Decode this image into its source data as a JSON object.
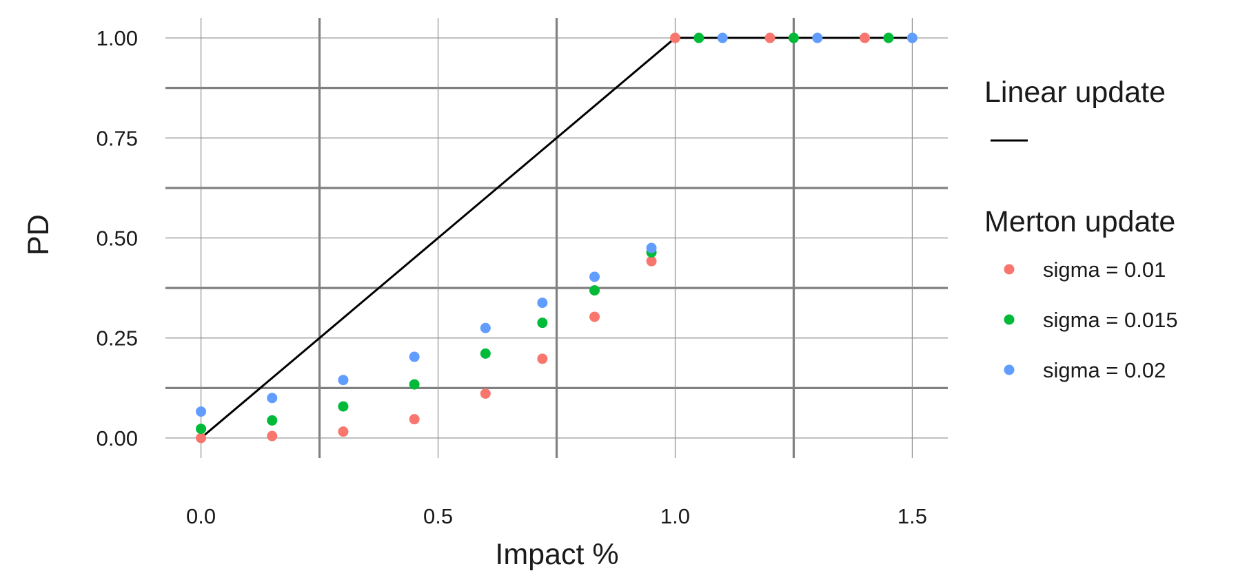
{
  "chart_data": {
    "type": "scatter",
    "title": "",
    "xlabel": "Impact %",
    "ylabel": "PD",
    "xlim": [
      -0.075,
      1.575
    ],
    "ylim": [
      -0.05,
      1.05
    ],
    "x_ticks": [
      0.0,
      0.5,
      1.0,
      1.5
    ],
    "x_tick_labels": [
      "0.0",
      "0.5",
      "1.0",
      "1.5"
    ],
    "y_ticks": [
      0.0,
      0.25,
      0.5,
      0.75,
      1.0
    ],
    "y_tick_labels": [
      "0.00",
      "0.25",
      "0.50",
      "0.75",
      "1.00"
    ],
    "grid": true,
    "legend_position": "right",
    "line_series": {
      "name": "Linear update",
      "legend_title": "Linear update",
      "color": "#000000",
      "points": [
        [
          0.0,
          0.0
        ],
        [
          1.0,
          1.0
        ],
        [
          1.5,
          1.0
        ]
      ]
    },
    "scatter_legend_title": "Merton update",
    "series": [
      {
        "name": "sigma = 0.01",
        "color": "#F8766D",
        "points": [
          [
            0.0,
            0.0
          ],
          [
            0.15,
            0.005
          ],
          [
            0.3,
            0.016
          ],
          [
            0.45,
            0.047
          ],
          [
            0.6,
            0.111
          ],
          [
            0.72,
            0.198
          ],
          [
            0.83,
            0.303
          ],
          [
            0.95,
            0.442
          ],
          [
            1.0,
            1.0
          ],
          [
            1.2,
            1.0
          ],
          [
            1.4,
            1.0
          ]
        ]
      },
      {
        "name": "sigma = 0.015",
        "color": "#00BA38",
        "points": [
          [
            0.0,
            0.023
          ],
          [
            0.15,
            0.044
          ],
          [
            0.3,
            0.079
          ],
          [
            0.45,
            0.134
          ],
          [
            0.6,
            0.211
          ],
          [
            0.72,
            0.288
          ],
          [
            0.83,
            0.369
          ],
          [
            0.95,
            0.464
          ],
          [
            1.05,
            1.0
          ],
          [
            1.25,
            1.0
          ],
          [
            1.45,
            1.0
          ]
        ]
      },
      {
        "name": "sigma = 0.02",
        "color": "#619CFF",
        "points": [
          [
            0.0,
            0.066
          ],
          [
            0.15,
            0.1
          ],
          [
            0.3,
            0.145
          ],
          [
            0.45,
            0.203
          ],
          [
            0.6,
            0.275
          ],
          [
            0.72,
            0.338
          ],
          [
            0.83,
            0.403
          ],
          [
            0.95,
            0.475
          ],
          [
            1.1,
            1.0
          ],
          [
            1.3,
            1.0
          ],
          [
            1.5,
            1.0
          ]
        ]
      }
    ]
  }
}
